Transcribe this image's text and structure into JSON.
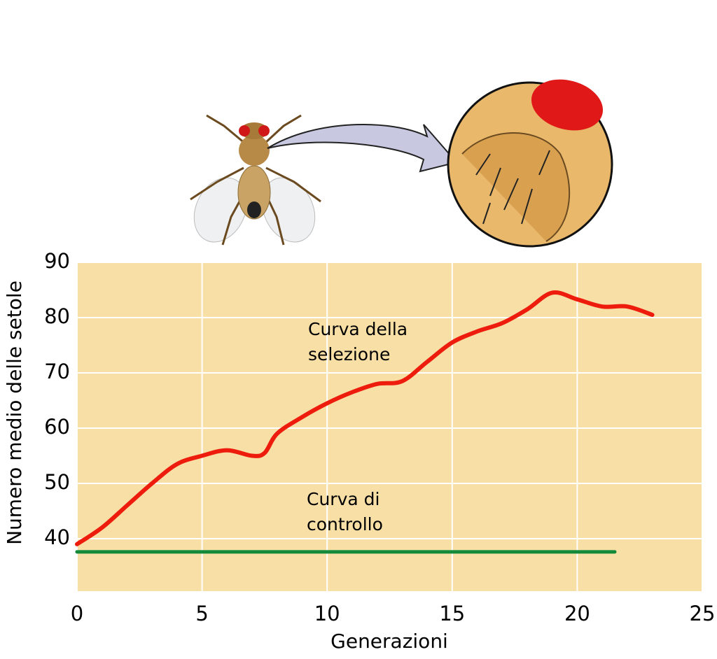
{
  "chart_data": {
    "type": "line",
    "x_label": "Generazioni",
    "y_label": "Numero medio delle setole",
    "xlim": [
      0,
      25
    ],
    "xticks": [
      0,
      5,
      10,
      15,
      20,
      25
    ],
    "ylim": [
      30.5,
      90
    ],
    "yticks": [
      40,
      50,
      60,
      70,
      80,
      90
    ],
    "grid": true,
    "background": "#f7dfa6",
    "series": [
      {
        "label": [
          "Curva della",
          "selezione"
        ],
        "color": "#ee1c0c",
        "x": [
          0,
          1,
          2,
          3,
          4,
          5,
          6,
          7,
          7.5,
          8,
          9,
          10,
          11,
          12,
          13,
          14,
          15,
          16,
          17,
          18,
          19,
          20,
          21,
          22,
          23
        ],
        "values": [
          39,
          42,
          46,
          50,
          53.5,
          55,
          56,
          55,
          55.5,
          59,
          62,
          64.5,
          66.5,
          68,
          68.5,
          72,
          75.5,
          77.5,
          79,
          81.5,
          84.5,
          83.3,
          82,
          82,
          80.5
        ]
      },
      {
        "label": [
          "Curva di",
          "controllo"
        ],
        "color": "#138a3a",
        "x": [
          0,
          21.5
        ],
        "values": [
          37.6,
          37.6
        ]
      }
    ]
  }
}
